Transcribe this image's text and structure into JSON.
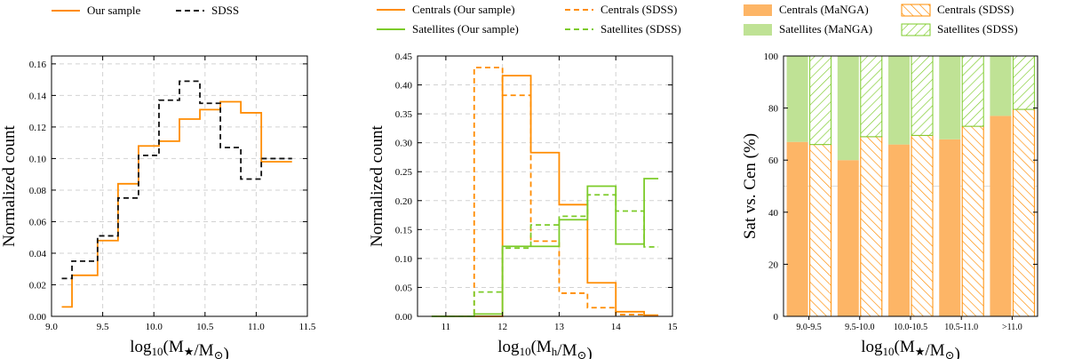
{
  "colors": {
    "orange": "#ff8c00",
    "green": "#7ccb29",
    "black": "#111111",
    "orange_fill": "#fdb566",
    "green_fill": "#bfe295"
  },
  "chart_data": [
    {
      "type": "line",
      "style": "step-histogram",
      "xlabel": "log10(M★/M⊙)",
      "ylabel": "Normalized count",
      "xlim": [
        9.0,
        11.5
      ],
      "ylim": [
        0.0,
        0.165
      ],
      "xticks": [
        "9.0",
        "9.5",
        "10.0",
        "10.5",
        "11.0",
        "11.5"
      ],
      "xtick_values": [
        9.0,
        9.5,
        10.0,
        10.5,
        11.0,
        11.5
      ],
      "yticks": [
        "0.00",
        "0.02",
        "0.04",
        "0.06",
        "0.08",
        "0.10",
        "0.12",
        "0.14",
        "0.16"
      ],
      "ytick_values": [
        0.0,
        0.02,
        0.04,
        0.06,
        0.08,
        0.1,
        0.12,
        0.14,
        0.16
      ],
      "grid": true,
      "legend_position": "above",
      "bin_edges": [
        9.1,
        9.2,
        9.45,
        9.65,
        9.85,
        10.05,
        10.25,
        10.45,
        10.65,
        10.85,
        11.05,
        11.25,
        11.35
      ],
      "series": [
        {
          "name": "Our sample",
          "color": "orange",
          "dash": "solid",
          "values": [
            0.006,
            0.026,
            0.048,
            0.084,
            0.108,
            0.111,
            0.125,
            0.131,
            0.136,
            0.129,
            0.098,
            0.098
          ]
        },
        {
          "name": "SDSS",
          "color": "black",
          "dash": "dashed",
          "values": [
            0.024,
            0.035,
            0.051,
            0.075,
            0.102,
            0.137,
            0.149,
            0.135,
            0.107,
            0.087,
            0.1,
            0.1
          ]
        }
      ]
    },
    {
      "type": "line",
      "style": "step-histogram",
      "xlabel": "log10(Mh/M⊙)",
      "ylabel": "Normalized count",
      "xlim": [
        10.5,
        15.0
      ],
      "ylim": [
        0.0,
        0.45
      ],
      "xticks": [
        "11",
        "12",
        "13",
        "14",
        "15"
      ],
      "xtick_values": [
        11,
        12,
        13,
        14,
        15
      ],
      "yticks": [
        "0.00",
        "0.05",
        "0.10",
        "0.15",
        "0.20",
        "0.25",
        "0.30",
        "0.35",
        "0.40",
        "0.45"
      ],
      "ytick_values": [
        0.0,
        0.05,
        0.1,
        0.15,
        0.2,
        0.25,
        0.3,
        0.35,
        0.4,
        0.45
      ],
      "grid": true,
      "legend_position": "above",
      "bin_edges": [
        10.75,
        11.25,
        11.5,
        12.0,
        12.5,
        13.0,
        13.5,
        14.0,
        14.5,
        14.75
      ],
      "series": [
        {
          "name": "Centrals (Our sample)",
          "color": "orange",
          "dash": "solid",
          "values": [
            0.0,
            0.0,
            0.0,
            0.416,
            0.283,
            0.193,
            0.058,
            0.008,
            0.002
          ]
        },
        {
          "name": "Centrals (SDSS)",
          "color": "orange",
          "dash": "dashed",
          "values": [
            0.0,
            0.0,
            0.43,
            0.382,
            0.13,
            0.04,
            0.015,
            0.003,
            0.001
          ]
        },
        {
          "name": "Satellites (Our sample)",
          "color": "green",
          "dash": "solid",
          "values": [
            0.0,
            0.0,
            0.004,
            0.121,
            0.121,
            0.167,
            0.225,
            0.125,
            0.238
          ]
        },
        {
          "name": "Satellites (SDSS)",
          "color": "green",
          "dash": "dashed",
          "values": [
            0.0,
            0.0,
            0.042,
            0.118,
            0.158,
            0.173,
            0.21,
            0.182,
            0.12
          ]
        }
      ]
    },
    {
      "type": "bar",
      "style": "stacked-grouped",
      "xlabel": "log10(M★/M⊙)",
      "ylabel": "Sat vs. Cen (%)",
      "ylim": [
        0,
        100
      ],
      "yticks": [
        "0",
        "20",
        "40",
        "60",
        "80",
        "100"
      ],
      "ytick_values": [
        0,
        20,
        40,
        60,
        80,
        100
      ],
      "reference_line": 50,
      "legend_position": "above",
      "categories": [
        "9.0-9.5",
        "9.5-10.0",
        "10.0-10.5",
        "10.5-11.0",
        ">11.0"
      ],
      "series": [
        {
          "name": "Centrals (MaNGA)",
          "color": "orange",
          "pattern": "solid",
          "values": [
            67.0,
            60.0,
            66.0,
            68.0,
            77.0
          ]
        },
        {
          "name": "Satellites (MaNGA)",
          "color": "green",
          "pattern": "solid",
          "values": [
            33.0,
            40.0,
            34.0,
            32.0,
            23.0
          ]
        },
        {
          "name": "Centrals (SDSS)",
          "color": "orange",
          "pattern": "hatched",
          "values": [
            66.0,
            69.0,
            69.5,
            73.0,
            79.5
          ]
        },
        {
          "name": "Satellites (SDSS)",
          "color": "green",
          "pattern": "hatched",
          "values": [
            34.0,
            31.0,
            30.5,
            27.0,
            20.5
          ]
        }
      ]
    }
  ]
}
